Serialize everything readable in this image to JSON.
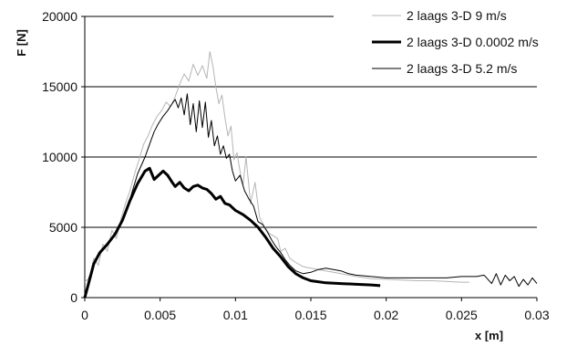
{
  "chart_data": {
    "type": "line",
    "title": "",
    "xlabel": "x [m]",
    "ylabel": "F [N]",
    "xlim": [
      0,
      0.03
    ],
    "ylim": [
      0,
      20000
    ],
    "x_ticks": [
      0,
      0.005,
      0.01,
      0.015,
      0.02,
      0.025,
      0.03
    ],
    "x_tick_labels": [
      "0",
      "0.005",
      "0.01",
      "0.015",
      "0.02",
      "0.025",
      "0.03"
    ],
    "y_ticks": [
      0,
      5000,
      10000,
      15000,
      20000
    ],
    "y_tick_labels": [
      "0",
      "5000",
      "10000",
      "15000",
      "20000"
    ],
    "grid": "horizontal",
    "legend_position": "top-right",
    "series": [
      {
        "name": "2 laags 3-D 9 m/s",
        "color": "#b5b5b5",
        "style": "thin",
        "points": [
          [
            0,
            1100
          ],
          [
            0.0003,
            1400
          ],
          [
            0.0006,
            2800
          ],
          [
            0.0009,
            2300
          ],
          [
            0.0012,
            3800
          ],
          [
            0.0015,
            3300
          ],
          [
            0.0018,
            4800
          ],
          [
            0.0021,
            4200
          ],
          [
            0.0024,
            5600
          ],
          [
            0.0027,
            6700
          ],
          [
            0.003,
            7600
          ],
          [
            0.0033,
            8800
          ],
          [
            0.0036,
            9800
          ],
          [
            0.0039,
            10900
          ],
          [
            0.0042,
            11500
          ],
          [
            0.0045,
            12300
          ],
          [
            0.0048,
            12900
          ],
          [
            0.0051,
            13300
          ],
          [
            0.0054,
            13900
          ],
          [
            0.0057,
            13600
          ],
          [
            0.006,
            14300
          ],
          [
            0.0063,
            15200
          ],
          [
            0.0066,
            15900
          ],
          [
            0.0069,
            15400
          ],
          [
            0.0072,
            16600
          ],
          [
            0.0075,
            15800
          ],
          [
            0.0078,
            16500
          ],
          [
            0.0081,
            15600
          ],
          [
            0.0083,
            17500
          ],
          [
            0.0085,
            16500
          ],
          [
            0.0087,
            15000
          ],
          [
            0.0089,
            13800
          ],
          [
            0.0091,
            14400
          ],
          [
            0.0093,
            12800
          ],
          [
            0.0095,
            11500
          ],
          [
            0.0097,
            12200
          ],
          [
            0.0099,
            9800
          ],
          [
            0.0101,
            10300
          ],
          [
            0.0103,
            9000
          ],
          [
            0.0105,
            8000
          ],
          [
            0.0107,
            10000
          ],
          [
            0.011,
            6700
          ],
          [
            0.0113,
            8200
          ],
          [
            0.0116,
            5700
          ],
          [
            0.0119,
            5100
          ],
          [
            0.0122,
            4600
          ],
          [
            0.0125,
            4400
          ],
          [
            0.0128,
            4200
          ],
          [
            0.013,
            3300
          ],
          [
            0.0133,
            3500
          ],
          [
            0.0136,
            2800
          ],
          [
            0.014,
            2500
          ],
          [
            0.0145,
            2200
          ],
          [
            0.015,
            2100
          ],
          [
            0.016,
            1900
          ],
          [
            0.017,
            1700
          ],
          [
            0.018,
            1500
          ],
          [
            0.019,
            1350
          ],
          [
            0.02,
            1300
          ],
          [
            0.021,
            1250
          ],
          [
            0.022,
            1200
          ],
          [
            0.023,
            1200
          ],
          [
            0.024,
            1150
          ],
          [
            0.025,
            1100
          ],
          [
            0.0255,
            1100
          ]
        ]
      },
      {
        "name": "2 laags 3-D 0.0002 m/s",
        "color": "#000000",
        "style": "thick",
        "points": [
          [
            0,
            0
          ],
          [
            0.0003,
            1200
          ],
          [
            0.0006,
            2400
          ],
          [
            0.001,
            3200
          ],
          [
            0.0015,
            3800
          ],
          [
            0.002,
            4500
          ],
          [
            0.0025,
            5500
          ],
          [
            0.003,
            6900
          ],
          [
            0.0035,
            8100
          ],
          [
            0.004,
            9000
          ],
          [
            0.0043,
            9200
          ],
          [
            0.0046,
            8400
          ],
          [
            0.0049,
            8700
          ],
          [
            0.0052,
            9000
          ],
          [
            0.0055,
            8700
          ],
          [
            0.0058,
            8200
          ],
          [
            0.006,
            7900
          ],
          [
            0.0063,
            8200
          ],
          [
            0.0066,
            7800
          ],
          [
            0.0069,
            7600
          ],
          [
            0.0072,
            7900
          ],
          [
            0.0075,
            8000
          ],
          [
            0.0078,
            7800
          ],
          [
            0.0081,
            7700
          ],
          [
            0.0084,
            7400
          ],
          [
            0.0087,
            7000
          ],
          [
            0.009,
            7200
          ],
          [
            0.0093,
            6700
          ],
          [
            0.0096,
            6600
          ],
          [
            0.01,
            6200
          ],
          [
            0.0105,
            5900
          ],
          [
            0.011,
            5500
          ],
          [
            0.0115,
            5000
          ],
          [
            0.012,
            4300
          ],
          [
            0.0125,
            3500
          ],
          [
            0.013,
            2900
          ],
          [
            0.0135,
            2200
          ],
          [
            0.014,
            1700
          ],
          [
            0.0145,
            1400
          ],
          [
            0.015,
            1200
          ],
          [
            0.016,
            1050
          ],
          [
            0.017,
            1000
          ],
          [
            0.018,
            950
          ],
          [
            0.019,
            900
          ],
          [
            0.0196,
            850
          ]
        ]
      },
      {
        "name": "2 laags 3-D 5.2 m/s",
        "color": "#000000",
        "style": "thin",
        "points": [
          [
            0,
            100
          ],
          [
            0.0003,
            1500
          ],
          [
            0.0006,
            2300
          ],
          [
            0.001,
            3200
          ],
          [
            0.0015,
            3700
          ],
          [
            0.002,
            4500
          ],
          [
            0.0025,
            5500
          ],
          [
            0.003,
            7000
          ],
          [
            0.0035,
            8800
          ],
          [
            0.004,
            10000
          ],
          [
            0.0043,
            10900
          ],
          [
            0.0046,
            11800
          ],
          [
            0.0049,
            12400
          ],
          [
            0.0052,
            12900
          ],
          [
            0.0055,
            13300
          ],
          [
            0.0058,
            13800
          ],
          [
            0.006,
            14100
          ],
          [
            0.0062,
            13500
          ],
          [
            0.0064,
            14200
          ],
          [
            0.0066,
            13000
          ],
          [
            0.0068,
            14500
          ],
          [
            0.007,
            12300
          ],
          [
            0.0072,
            13800
          ],
          [
            0.0074,
            11800
          ],
          [
            0.0076,
            14000
          ],
          [
            0.0078,
            12100
          ],
          [
            0.008,
            13900
          ],
          [
            0.0082,
            11400
          ],
          [
            0.0084,
            12600
          ],
          [
            0.0086,
            10800
          ],
          [
            0.0088,
            11500
          ],
          [
            0.009,
            10200
          ],
          [
            0.0092,
            10800
          ],
          [
            0.0094,
            9900
          ],
          [
            0.0096,
            10200
          ],
          [
            0.0098,
            9000
          ],
          [
            0.01,
            8300
          ],
          [
            0.0103,
            8700
          ],
          [
            0.0106,
            7600
          ],
          [
            0.0109,
            7000
          ],
          [
            0.0112,
            6500
          ],
          [
            0.0115,
            5400
          ],
          [
            0.0118,
            5200
          ],
          [
            0.0121,
            4700
          ],
          [
            0.0124,
            4100
          ],
          [
            0.0127,
            3600
          ],
          [
            0.013,
            3200
          ],
          [
            0.0133,
            2700
          ],
          [
            0.0136,
            2300
          ],
          [
            0.014,
            1900
          ],
          [
            0.0145,
            1700
          ],
          [
            0.015,
            1800
          ],
          [
            0.0155,
            2000
          ],
          [
            0.016,
            2100
          ],
          [
            0.0165,
            2000
          ],
          [
            0.017,
            1900
          ],
          [
            0.0175,
            1700
          ],
          [
            0.018,
            1600
          ],
          [
            0.019,
            1500
          ],
          [
            0.02,
            1400
          ],
          [
            0.021,
            1400
          ],
          [
            0.022,
            1400
          ],
          [
            0.023,
            1400
          ],
          [
            0.024,
            1400
          ],
          [
            0.025,
            1500
          ],
          [
            0.026,
            1500
          ],
          [
            0.0265,
            1600
          ],
          [
            0.027,
            1000
          ],
          [
            0.0273,
            1700
          ],
          [
            0.0276,
            900
          ],
          [
            0.0279,
            1600
          ],
          [
            0.0282,
            1200
          ],
          [
            0.0285,
            1500
          ],
          [
            0.0288,
            800
          ],
          [
            0.0291,
            1300
          ],
          [
            0.0294,
            900
          ],
          [
            0.0297,
            1400
          ],
          [
            0.03,
            1000
          ]
        ]
      }
    ]
  }
}
